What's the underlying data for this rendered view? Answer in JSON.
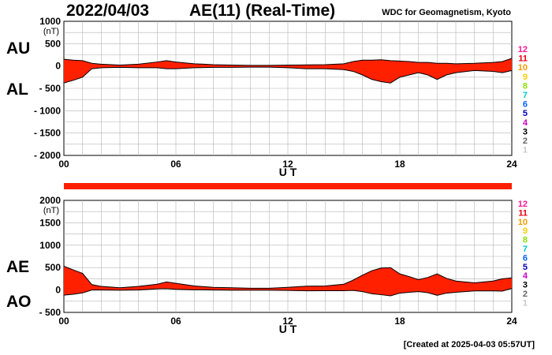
{
  "header": {
    "date": "2022/04/03",
    "title": "AE(11) (Real-Time)",
    "org": "WDC for Geomagnetism, Kyoto",
    "created": "[Created at 2025-04-03 05:57UT]"
  },
  "colors": {
    "fill": "#ff2000",
    "line": "#000000",
    "grid": "#b4b4b4",
    "bar": "#ff2000"
  },
  "station_count": {
    "labels": [
      "12",
      "11",
      "10",
      "9",
      "8",
      "7",
      "6",
      "5",
      "4",
      "3",
      "2",
      "1"
    ],
    "colors": [
      "#ff1493",
      "#e8000c",
      "#ff9900",
      "#ffd000",
      "#88e000",
      "#00c8c8",
      "#0064ff",
      "#0000b4",
      "#c800c8",
      "#000000",
      "#646464",
      "#c8c8c8"
    ]
  },
  "chart_data": [
    {
      "type": "area",
      "xlabel": "U T",
      "xlim": [
        0,
        24
      ],
      "xticks": [
        "00",
        "06",
        "12",
        "18",
        "24"
      ],
      "ylim": [
        -2000,
        1000
      ],
      "yticks": [
        "1000",
        "500",
        "0",
        "- 500",
        "- 1000",
        "- 1500",
        "- 2000"
      ],
      "yunit": "(nT)",
      "series": [
        {
          "name": "AU",
          "x": [
            0,
            0.5,
            1,
            1.5,
            2,
            3,
            4,
            5,
            5.5,
            6,
            7,
            8,
            9,
            10,
            11,
            12,
            13,
            14,
            15,
            15.5,
            16,
            16.5,
            17,
            17.5,
            18,
            18.5,
            19,
            19.5,
            20,
            20.5,
            21,
            22,
            23,
            23.5,
            24
          ],
          "values": [
            150,
            130,
            120,
            60,
            40,
            20,
            40,
            90,
            120,
            90,
            50,
            30,
            20,
            15,
            15,
            20,
            25,
            30,
            50,
            100,
            130,
            130,
            140,
            120,
            110,
            100,
            80,
            80,
            60,
            60,
            50,
            60,
            80,
            100,
            170
          ]
        },
        {
          "name": "AL",
          "x": [
            0,
            0.5,
            1,
            1.5,
            2,
            3,
            4,
            5,
            5.5,
            6,
            7,
            8,
            9,
            10,
            11,
            12,
            13,
            14,
            15,
            15.5,
            16,
            16.5,
            17,
            17.5,
            18,
            18.5,
            19,
            19.5,
            20,
            20.5,
            21,
            22,
            23,
            23.5,
            24
          ],
          "values": [
            -380,
            -320,
            -250,
            -60,
            -40,
            -30,
            -40,
            -40,
            -60,
            -60,
            -40,
            -30,
            -30,
            -25,
            -25,
            -40,
            -60,
            -60,
            -80,
            -120,
            -200,
            -300,
            -350,
            -380,
            -250,
            -200,
            -150,
            -200,
            -300,
            -200,
            -150,
            -100,
            -120,
            -150,
            -100
          ]
        }
      ]
    },
    {
      "type": "area",
      "xlabel": "U T",
      "xlim": [
        0,
        24
      ],
      "xticks": [
        "00",
        "06",
        "12",
        "18",
        "24"
      ],
      "ylim": [
        -500,
        2000
      ],
      "yticks": [
        "2000",
        "1500",
        "1000",
        "500",
        "0",
        "- 500"
      ],
      "yunit": "(nT)",
      "series": [
        {
          "name": "AE",
          "x": [
            0,
            0.5,
            1,
            1.5,
            2,
            3,
            4,
            5,
            5.5,
            6,
            7,
            8,
            9,
            10,
            11,
            12,
            13,
            14,
            15,
            15.5,
            16,
            16.5,
            17,
            17.5,
            18,
            18.5,
            19,
            19.5,
            20,
            20.5,
            21,
            22,
            23,
            23.5,
            24
          ],
          "values": [
            530,
            450,
            370,
            120,
            80,
            50,
            80,
            130,
            180,
            150,
            90,
            60,
            50,
            40,
            40,
            60,
            85,
            90,
            130,
            220,
            330,
            430,
            490,
            500,
            360,
            300,
            230,
            280,
            360,
            260,
            200,
            160,
            200,
            250,
            270
          ]
        },
        {
          "name": "AO",
          "x": [
            0,
            0.5,
            1,
            1.5,
            2,
            3,
            4,
            5,
            5.5,
            6,
            7,
            8,
            9,
            10,
            11,
            12,
            13,
            14,
            15,
            15.5,
            16,
            16.5,
            17,
            17.5,
            18,
            18.5,
            19,
            19.5,
            20,
            20.5,
            21,
            22,
            23,
            23.5,
            24
          ],
          "values": [
            -115,
            -95,
            -65,
            0,
            0,
            -5,
            0,
            25,
            30,
            15,
            5,
            0,
            -5,
            -5,
            -5,
            -10,
            -17,
            -15,
            -15,
            -10,
            -35,
            -85,
            -105,
            -130,
            -70,
            -50,
            -35,
            -60,
            -120,
            -70,
            -50,
            -20,
            -20,
            -25,
            35
          ]
        }
      ]
    }
  ]
}
